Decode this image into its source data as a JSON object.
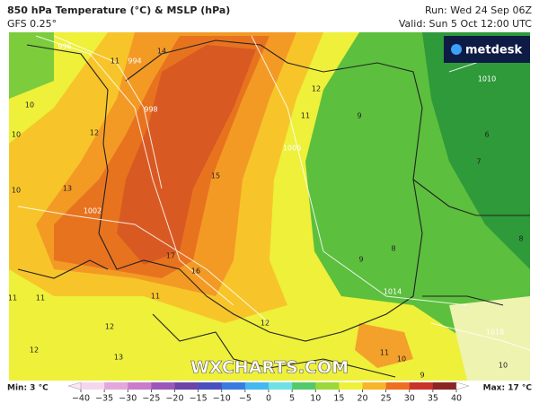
{
  "header": {
    "title": "850 hPa Temperature (°C) & MSLP (hPa)",
    "subtitle": "GFS 0.25°",
    "run": "Run: Wed 24 Sep 06Z",
    "valid": "Valid: Sun 5 Oct 12:00 UTC"
  },
  "logo": "metdesk",
  "watermark": "WXCHARTS.COM",
  "map_labels": [
    "14",
    "11",
    "10",
    "12",
    "10",
    "13",
    "10",
    "15",
    "12",
    "11",
    "9",
    "7",
    "6",
    "8",
    "9",
    "8",
    "17",
    "16",
    "11",
    "11",
    "11",
    "12",
    "12",
    "13",
    "12",
    "11",
    "10",
    "10",
    "9"
  ],
  "isobar_labels": [
    "996",
    "994",
    "998",
    "1002",
    "1006",
    "1010",
    "1014",
    "1018"
  ],
  "colorbar": {
    "min_label": "Min: 3 °C",
    "max_label": "Max: 17 °C",
    "ticks": [
      {
        "value": -40,
        "label": "−40"
      },
      {
        "value": -35,
        "label": "−35"
      },
      {
        "value": -30,
        "label": "−30"
      },
      {
        "value": -25,
        "label": "−25"
      },
      {
        "value": -20,
        "label": "−20"
      },
      {
        "value": -15,
        "label": "−15"
      },
      {
        "value": -10,
        "label": "−10"
      },
      {
        "value": -5,
        "label": "−5"
      },
      0,
      5,
      10,
      15,
      20,
      25,
      30,
      35,
      40
    ]
  }
}
